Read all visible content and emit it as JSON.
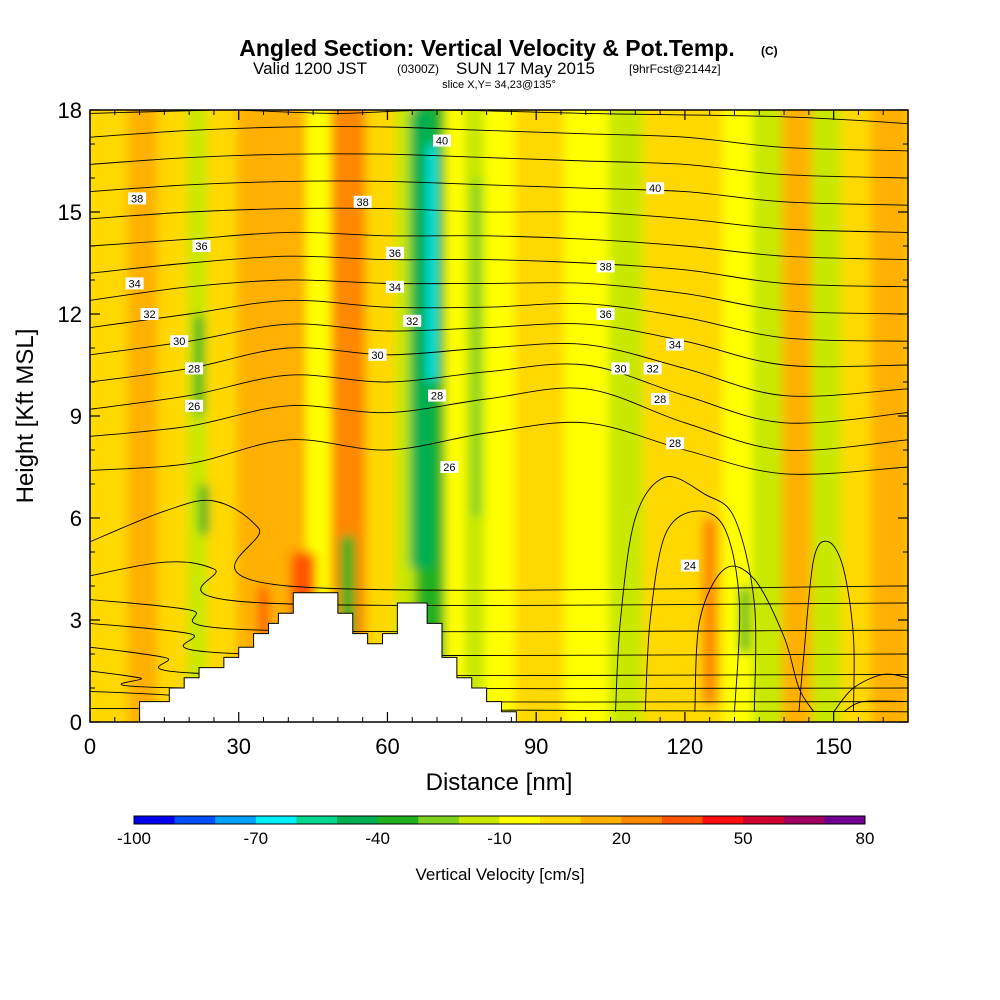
{
  "title": {
    "main": "Angled Section: Vertical Velocity & Pot.Temp.",
    "main_tag": "(C)",
    "valid_prefix": "Valid 1200 JST",
    "valid_utc": "(0300Z)",
    "valid_date": "SUN 17 May 2015",
    "forecast": "[9hrFcst@2144z]",
    "slice": "slice X,Y= 34,23@135°"
  },
  "chart_data": {
    "type": "heatmap",
    "title": "Angled Section: Vertical Velocity & Pot.Temp.",
    "xlabel": "Distance [nm]",
    "ylabel": "Height [Kft MSL]",
    "xlim": [
      0,
      165
    ],
    "ylim": [
      0,
      18
    ],
    "x_ticks": [
      "0",
      "30",
      "60",
      "90",
      "120",
      "150"
    ],
    "y_ticks": [
      "0",
      "3",
      "6",
      "9",
      "12",
      "15",
      "18"
    ],
    "grid": false,
    "colorbar": {
      "label": "Vertical Velocity [cm/s]",
      "tick_labels": [
        "-100",
        "-70",
        "-40",
        "-10",
        "20",
        "50",
        "80"
      ],
      "colors": [
        "#0000ee",
        "#0050ff",
        "#00a0ff",
        "#00f0ff",
        "#00d890",
        "#00b050",
        "#20b020",
        "#80d020",
        "#c8e800",
        "#ffff00",
        "#ffd800",
        "#ffb000",
        "#ff8800",
        "#ff5500",
        "#ff1010",
        "#d00030",
        "#a00060",
        "#700090"
      ]
    },
    "vertical_velocity_columns": [
      {
        "x0": 0,
        "x1": 3,
        "value": 5
      },
      {
        "x0": 3,
        "x1": 8,
        "value": 0
      },
      {
        "x0": 8,
        "x1": 14,
        "value": 10
      },
      {
        "x0": 14,
        "x1": 20,
        "value": 0
      },
      {
        "x0": 20,
        "x1": 24,
        "value": -20
      },
      {
        "x0": 24,
        "x1": 30,
        "value": 0
      },
      {
        "x0": 30,
        "x1": 38,
        "value": 10
      },
      {
        "x0": 38,
        "x1": 44,
        "value": 15
      },
      {
        "x0": 44,
        "x1": 49,
        "value": -10
      },
      {
        "x0": 49,
        "x1": 56,
        "value": 20
      },
      {
        "x0": 56,
        "x1": 62,
        "value": 5
      },
      {
        "x0": 62,
        "x1": 66,
        "value": -15
      },
      {
        "x0": 66,
        "x1": 72,
        "value": -40
      },
      {
        "x0": 72,
        "x1": 76,
        "value": -5
      },
      {
        "x0": 76,
        "x1": 80,
        "value": -20
      },
      {
        "x0": 80,
        "x1": 86,
        "value": -5
      },
      {
        "x0": 86,
        "x1": 96,
        "value": 0
      },
      {
        "x0": 96,
        "x1": 105,
        "value": -10
      },
      {
        "x0": 105,
        "x1": 112,
        "value": -15
      },
      {
        "x0": 112,
        "x1": 120,
        "value": 5
      },
      {
        "x0": 120,
        "x1": 128,
        "value": 0
      },
      {
        "x0": 128,
        "x1": 134,
        "value": -10
      },
      {
        "x0": 134,
        "x1": 140,
        "value": -20
      },
      {
        "x0": 140,
        "x1": 146,
        "value": 10
      },
      {
        "x0": 146,
        "x1": 152,
        "value": -15
      },
      {
        "x0": 152,
        "x1": 158,
        "value": 5
      },
      {
        "x0": 158,
        "x1": 165,
        "value": 15
      }
    ],
    "vertical_velocity_features": [
      {
        "x": 67,
        "y0": 4.5,
        "y1": 18,
        "width": 5,
        "value": -50
      },
      {
        "x": 69,
        "y0": 10,
        "y1": 17,
        "width": 1.5,
        "value": -70
      },
      {
        "x": 52,
        "y0": 10,
        "y1": 17,
        "width": 4,
        "value": 25
      },
      {
        "x": 43,
        "y0": 2.5,
        "y1": 5,
        "width": 5,
        "value": 30
      },
      {
        "x": 52,
        "y0": 2,
        "y1": 5.5,
        "width": 3,
        "value": -40
      },
      {
        "x": 23,
        "y0": 5.5,
        "y1": 7,
        "width": 2,
        "value": -40
      },
      {
        "x": 22,
        "y0": 9,
        "y1": 12,
        "width": 2,
        "value": -40
      },
      {
        "x": 35,
        "y0": 2.5,
        "y1": 4,
        "width": 2,
        "value": 35
      },
      {
        "x": 125,
        "y0": 0.5,
        "y1": 6,
        "width": 3,
        "value": 25
      },
      {
        "x": 132,
        "y0": 2,
        "y1": 4,
        "width": 2,
        "value": -40
      },
      {
        "x": 78,
        "y0": 6,
        "y1": 16,
        "width": 2,
        "value": -30
      }
    ],
    "terrain": [
      [
        10,
        0.6
      ],
      [
        16,
        0.6
      ],
      [
        16,
        1.0
      ],
      [
        19,
        1.0
      ],
      [
        19,
        1.3
      ],
      [
        22,
        1.3
      ],
      [
        22,
        1.6
      ],
      [
        27,
        1.6
      ],
      [
        27,
        1.9
      ],
      [
        30,
        1.9
      ],
      [
        30,
        2.2
      ],
      [
        33,
        2.2
      ],
      [
        33,
        2.6
      ],
      [
        36,
        2.6
      ],
      [
        36,
        2.9
      ],
      [
        38,
        2.9
      ],
      [
        38,
        3.2
      ],
      [
        41,
        3.2
      ],
      [
        41,
        3.8
      ],
      [
        50,
        3.8
      ],
      [
        50,
        3.2
      ],
      [
        53,
        3.2
      ],
      [
        53,
        2.6
      ],
      [
        56,
        2.6
      ],
      [
        56,
        2.3
      ],
      [
        59,
        2.3
      ],
      [
        59,
        2.6
      ],
      [
        62,
        2.6
      ],
      [
        62,
        3.5
      ],
      [
        68,
        3.5
      ],
      [
        68,
        2.9
      ],
      [
        71,
        2.9
      ],
      [
        71,
        1.9
      ],
      [
        74,
        1.9
      ],
      [
        74,
        1.3
      ],
      [
        77,
        1.3
      ],
      [
        77,
        1.0
      ],
      [
        80,
        1.0
      ],
      [
        80,
        0.6
      ],
      [
        83,
        0.6
      ],
      [
        83,
        0.3
      ],
      [
        86,
        0.3
      ],
      [
        86,
        0.0
      ]
    ],
    "theta_isentropes": [
      [
        [
          0,
          0.4
        ],
        [
          165,
          0.3
        ]
      ],
      [
        [
          0,
          0.9
        ],
        [
          15,
          0.8
        ],
        [
          35,
          0.6
        ],
        [
          165,
          0.6
        ]
      ],
      [
        [
          0,
          1.5
        ],
        [
          10,
          1.3
        ],
        [
          20,
          1.0
        ],
        [
          165,
          1.0
        ]
      ],
      [
        [
          0,
          2.2
        ],
        [
          15,
          1.9
        ],
        [
          28,
          1.4
        ],
        [
          165,
          1.4
        ]
      ],
      [
        [
          0,
          2.9
        ],
        [
          20,
          2.6
        ],
        [
          32,
          2.0
        ],
        [
          165,
          2.0
        ]
      ],
      [
        [
          0,
          3.6
        ],
        [
          20,
          3.3
        ],
        [
          35,
          2.7
        ],
        [
          165,
          2.7
        ]
      ],
      [
        [
          0,
          4.3
        ],
        [
          15,
          4.7
        ],
        [
          25,
          4.5
        ],
        [
          35,
          3.5
        ],
        [
          165,
          3.5
        ]
      ],
      [
        [
          0,
          5.3
        ],
        [
          15,
          6.2
        ],
        [
          25,
          6.5
        ],
        [
          34,
          5.7
        ],
        [
          40,
          4.0
        ],
        [
          165,
          4.0
        ]
      ],
      [
        [
          0,
          7.4
        ],
        [
          20,
          7.6
        ],
        [
          40,
          8.3
        ],
        [
          60,
          8.0
        ],
        [
          80,
          8.5
        ],
        [
          100,
          8.8
        ],
        [
          120,
          8.0
        ],
        [
          140,
          7.3
        ],
        [
          165,
          7.5
        ]
      ],
      [
        [
          0,
          8.4
        ],
        [
          20,
          8.7
        ],
        [
          40,
          9.3
        ],
        [
          60,
          9.1
        ],
        [
          80,
          9.5
        ],
        [
          100,
          9.8
        ],
        [
          120,
          8.8
        ],
        [
          140,
          8.0
        ],
        [
          165,
          8.3
        ]
      ],
      [
        [
          0,
          9.2
        ],
        [
          20,
          9.6
        ],
        [
          40,
          10.2
        ],
        [
          60,
          10.0
        ],
        [
          80,
          10.3
        ],
        [
          100,
          10.5
        ],
        [
          120,
          9.6
        ],
        [
          140,
          8.8
        ],
        [
          165,
          9.1
        ]
      ],
      [
        [
          0,
          10.0
        ],
        [
          20,
          10.4
        ],
        [
          40,
          11.0
        ],
        [
          60,
          10.8
        ],
        [
          80,
          11.0
        ],
        [
          100,
          11.1
        ],
        [
          120,
          10.4
        ],
        [
          140,
          9.6
        ],
        [
          165,
          9.8
        ]
      ],
      [
        [
          0,
          10.8
        ],
        [
          20,
          11.2
        ],
        [
          40,
          11.7
        ],
        [
          60,
          11.5
        ],
        [
          80,
          11.6
        ],
        [
          100,
          11.7
        ],
        [
          120,
          11.2
        ],
        [
          140,
          10.5
        ],
        [
          165,
          10.5
        ]
      ],
      [
        [
          0,
          11.6
        ],
        [
          20,
          12.0
        ],
        [
          40,
          12.4
        ],
        [
          60,
          12.2
        ],
        [
          80,
          12.2
        ],
        [
          100,
          12.3
        ],
        [
          120,
          11.9
        ],
        [
          140,
          11.3
        ],
        [
          165,
          11.2
        ]
      ],
      [
        [
          0,
          12.4
        ],
        [
          20,
          12.8
        ],
        [
          40,
          13.0
        ],
        [
          60,
          12.9
        ],
        [
          80,
          12.9
        ],
        [
          100,
          12.9
        ],
        [
          120,
          12.6
        ],
        [
          140,
          12.1
        ],
        [
          165,
          12.0
        ]
      ],
      [
        [
          0,
          13.2
        ],
        [
          20,
          13.5
        ],
        [
          40,
          13.7
        ],
        [
          60,
          13.6
        ],
        [
          80,
          13.6
        ],
        [
          100,
          13.5
        ],
        [
          120,
          13.3
        ],
        [
          140,
          12.9
        ],
        [
          165,
          12.8
        ]
      ],
      [
        [
          0,
          14.0
        ],
        [
          20,
          14.2
        ],
        [
          40,
          14.4
        ],
        [
          60,
          14.3
        ],
        [
          80,
          14.3
        ],
        [
          100,
          14.2
        ],
        [
          120,
          14.0
        ],
        [
          140,
          13.7
        ],
        [
          165,
          13.6
        ]
      ],
      [
        [
          0,
          14.8
        ],
        [
          20,
          15.0
        ],
        [
          40,
          15.1
        ],
        [
          60,
          15.1
        ],
        [
          80,
          15.0
        ],
        [
          100,
          15.0
        ],
        [
          120,
          14.8
        ],
        [
          140,
          14.5
        ],
        [
          165,
          14.4
        ]
      ],
      [
        [
          0,
          15.6
        ],
        [
          20,
          15.8
        ],
        [
          40,
          15.9
        ],
        [
          60,
          15.9
        ],
        [
          80,
          15.8
        ],
        [
          100,
          15.7
        ],
        [
          120,
          15.6
        ],
        [
          140,
          15.3
        ],
        [
          165,
          15.2
        ]
      ],
      [
        [
          0,
          16.4
        ],
        [
          20,
          16.6
        ],
        [
          40,
          16.7
        ],
        [
          60,
          16.7
        ],
        [
          80,
          16.6
        ],
        [
          100,
          16.5
        ],
        [
          120,
          16.4
        ],
        [
          140,
          16.1
        ],
        [
          165,
          16.0
        ]
      ],
      [
        [
          0,
          17.2
        ],
        [
          20,
          17.4
        ],
        [
          40,
          17.5
        ],
        [
          60,
          17.5
        ],
        [
          80,
          17.4
        ],
        [
          100,
          17.3
        ],
        [
          120,
          17.2
        ],
        [
          140,
          16.9
        ],
        [
          165,
          16.8
        ]
      ],
      [
        [
          30,
          18
        ],
        [
          50,
          17.9
        ],
        [
          70,
          18
        ],
        [
          100,
          17.9
        ],
        [
          140,
          17.8
        ],
        [
          165,
          17.6
        ]
      ],
      [
        [
          0,
          17.9
        ],
        [
          25,
          18
        ]
      ],
      [
        [
          106,
          0.3
        ],
        [
          107,
          3
        ],
        [
          110,
          6
        ],
        [
          116,
          7.2
        ],
        [
          124,
          6.7
        ],
        [
          130,
          6.0
        ],
        [
          134,
          3.5
        ],
        [
          134,
          0.3
        ]
      ],
      [
        [
          112,
          0.3
        ],
        [
          113,
          3
        ],
        [
          116,
          5.5
        ],
        [
          122,
          6.2
        ],
        [
          128,
          5.7
        ],
        [
          131,
          3.5
        ],
        [
          130,
          0.3
        ]
      ],
      [
        [
          122,
          0.3
        ],
        [
          123,
          3
        ],
        [
          128,
          4.5
        ],
        [
          134,
          4.2
        ],
        [
          140,
          2.5
        ],
        [
          143,
          1.0
        ],
        [
          146,
          0.3
        ]
      ],
      [
        [
          143,
          0.3
        ],
        [
          144,
          2
        ],
        [
          146,
          4.8
        ],
        [
          149,
          5.3
        ],
        [
          152,
          4.5
        ],
        [
          154,
          2.5
        ],
        [
          154,
          0.3
        ]
      ],
      [
        [
          150,
          0.3
        ],
        [
          154,
          1.0
        ],
        [
          160,
          1.4
        ],
        [
          165,
          1.3
        ]
      ],
      [
        [
          152,
          0.3
        ],
        [
          156,
          0.6
        ],
        [
          165,
          0.6
        ]
      ]
    ],
    "contour_labels": [
      {
        "text": "40",
        "x": 71,
        "y": 17.1
      },
      {
        "text": "40",
        "x": 114,
        "y": 15.7
      },
      {
        "text": "38",
        "x": 9.5,
        "y": 15.4
      },
      {
        "text": "38",
        "x": 55,
        "y": 15.3
      },
      {
        "text": "38",
        "x": 104,
        "y": 13.4
      },
      {
        "text": "36",
        "x": 22.5,
        "y": 14.0
      },
      {
        "text": "36",
        "x": 61.5,
        "y": 13.8
      },
      {
        "text": "36",
        "x": 104,
        "y": 12.0
      },
      {
        "text": "34",
        "x": 9,
        "y": 12.9
      },
      {
        "text": "34",
        "x": 61.5,
        "y": 12.8
      },
      {
        "text": "34",
        "x": 118,
        "y": 11.1
      },
      {
        "text": "32",
        "x": 12,
        "y": 12.0
      },
      {
        "text": "32",
        "x": 65,
        "y": 11.8
      },
      {
        "text": "32",
        "x": 113.5,
        "y": 10.4
      },
      {
        "text": "30",
        "x": 18,
        "y": 11.2
      },
      {
        "text": "30",
        "x": 58,
        "y": 10.8
      },
      {
        "text": "30",
        "x": 107,
        "y": 10.4
      },
      {
        "text": "28",
        "x": 21,
        "y": 10.4
      },
      {
        "text": "28",
        "x": 70,
        "y": 9.6
      },
      {
        "text": "28",
        "x": 115,
        "y": 9.5
      },
      {
        "text": "28",
        "x": 118,
        "y": 8.2
      },
      {
        "text": "26",
        "x": 21,
        "y": 9.3
      },
      {
        "text": "26",
        "x": 72.5,
        "y": 7.5
      },
      {
        "text": "24",
        "x": 121,
        "y": 4.6
      }
    ]
  }
}
